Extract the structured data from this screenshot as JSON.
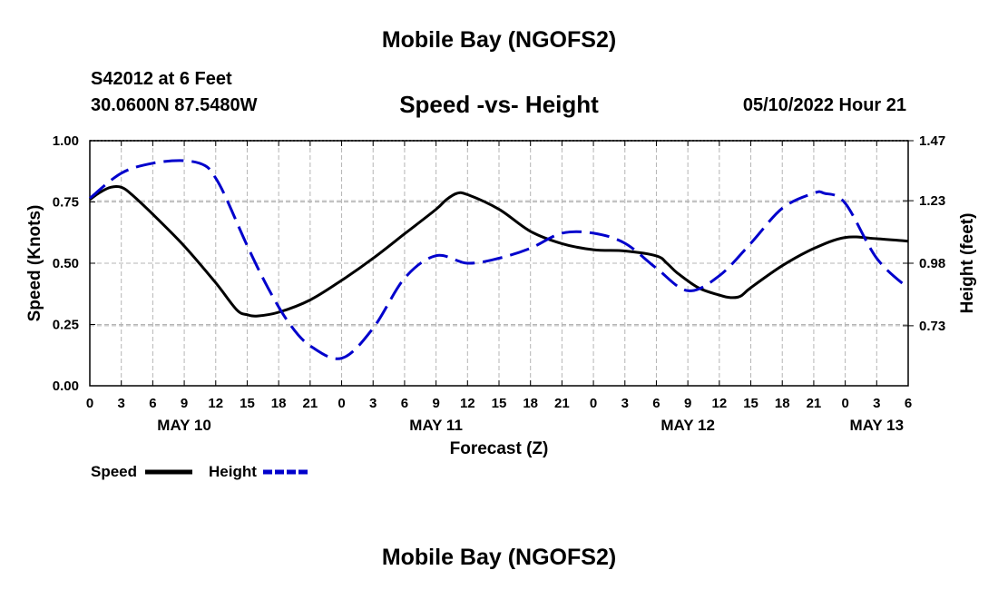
{
  "header": {
    "title": "Mobile Bay (NGOFS2)",
    "station": "S42012 at 6 Feet",
    "coordinates": "30.0600N  87.5480W",
    "subtitle": "Speed -vs- Height",
    "datetime": "05/10/2022 Hour 21"
  },
  "footer": {
    "title": "Mobile Bay (NGOFS2)"
  },
  "chart_data": {
    "type": "line",
    "xlabel": "Forecast (Z)",
    "ylabel_left": "Speed (Knots)",
    "ylabel_right": "Height (feet)",
    "x_range_hours": [
      0,
      78
    ],
    "ylim_left": [
      0,
      1.0
    ],
    "ylim_right": [
      0.49,
      1.47
    ],
    "yticks_left": [
      "0.00",
      "0.25",
      "0.50",
      "0.75",
      "1.00"
    ],
    "yticks_left_values": [
      0,
      0.25,
      0.5,
      0.75,
      1.0
    ],
    "yticks_right": [
      "0.73",
      "0.98",
      "1.23",
      "1.47"
    ],
    "yticks_right_values": [
      0.73,
      0.98,
      1.23,
      1.47
    ],
    "xtick_labels": [
      "0",
      "3",
      "6",
      "9",
      "12",
      "15",
      "18",
      "21",
      "0",
      "3",
      "6",
      "9",
      "12",
      "15",
      "18",
      "21",
      "0",
      "3",
      "6",
      "9",
      "12",
      "15",
      "18",
      "21",
      "0",
      "3",
      "6"
    ],
    "date_labels": [
      {
        "label": "MAY 10",
        "hour": 9
      },
      {
        "label": "MAY 11",
        "hour": 33
      },
      {
        "label": "MAY 12",
        "hour": 57
      },
      {
        "label": "MAY 13",
        "hour": 75
      }
    ],
    "grid": true,
    "series": [
      {
        "name": "Speed",
        "axis": "left",
        "color": "#000000",
        "style": "solid",
        "x": [
          0,
          1,
          2,
          3,
          4,
          6,
          9,
          12,
          14,
          15,
          16,
          18,
          21,
          24,
          27,
          30,
          33,
          34,
          35,
          36,
          39,
          42,
          45,
          48,
          51,
          54,
          55,
          56,
          58,
          60,
          61,
          62,
          63,
          66,
          69,
          72,
          75,
          78
        ],
        "y": [
          0.76,
          0.79,
          0.81,
          0.81,
          0.78,
          0.7,
          0.57,
          0.42,
          0.31,
          0.29,
          0.285,
          0.3,
          0.35,
          0.43,
          0.52,
          0.62,
          0.72,
          0.76,
          0.785,
          0.78,
          0.72,
          0.63,
          0.58,
          0.555,
          0.55,
          0.53,
          0.5,
          0.46,
          0.4,
          0.37,
          0.36,
          0.365,
          0.4,
          0.49,
          0.56,
          0.605,
          0.6,
          0.59
        ]
      },
      {
        "name": "Height",
        "axis": "right",
        "color": "#0000cc",
        "style": "dashed",
        "x": [
          0,
          3,
          6,
          9,
          11,
          12,
          13,
          15,
          17,
          19,
          21,
          24,
          27,
          30,
          33,
          36,
          39,
          42,
          45,
          48,
          51,
          54,
          57,
          60,
          63,
          66,
          69,
          70,
          72,
          75,
          78
        ],
        "y": [
          1.24,
          1.34,
          1.38,
          1.39,
          1.37,
          1.32,
          1.24,
          1.05,
          0.88,
          0.74,
          0.65,
          0.6,
          0.72,
          0.92,
          1.01,
          0.98,
          1.0,
          1.04,
          1.1,
          1.1,
          1.06,
          0.96,
          0.87,
          0.93,
          1.06,
          1.2,
          1.26,
          1.26,
          1.22,
          1.0,
          0.88
        ]
      }
    ]
  },
  "legend": {
    "items": [
      {
        "label": "Speed",
        "color": "#000000",
        "style": "solid"
      },
      {
        "label": "Height",
        "color": "#0000cc",
        "style": "dashed"
      }
    ]
  }
}
